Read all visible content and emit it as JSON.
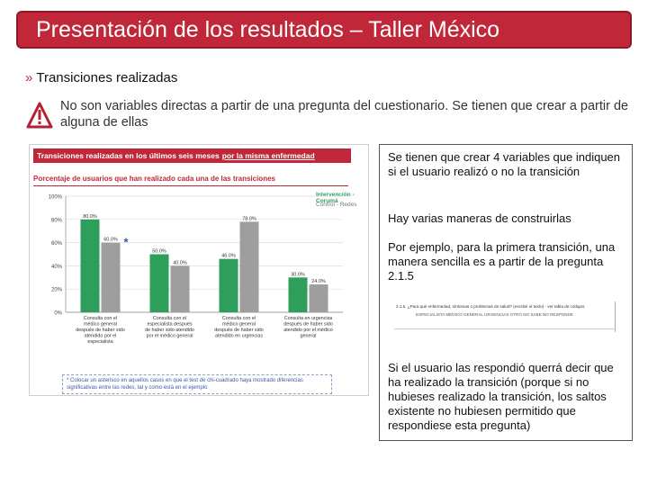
{
  "title": "Presentación de los resultados – Taller México",
  "section": {
    "bullet": "»",
    "label": "Transiciones realizadas"
  },
  "warning": {
    "icon": "warning-triangle-icon",
    "text": "No son variables directas a partir de una pregunta del cuestionario. Se tienen que crear a partir de alguna de ellas"
  },
  "chart_card": {
    "banner": "Transiciones realizadas en los últimos seis meses",
    "banner_underlined": "por la misma enfermedad",
    "subtitle": "Porcentaje de usuarios que han realizado cada una de las transiciones",
    "legend_intervencion": "Intervención - Corumá",
    "legend_control": "Control - Redes",
    "asterisk": "*",
    "footnote": "* Colocar un asterisco en aquellos casos en que el test de chi-cuadrado haya mostrado diferencias significativas entre las redes, tal y como está en el ejemplo"
  },
  "chart_data": {
    "type": "bar",
    "ylim": [
      0,
      100
    ],
    "yticks": [
      "100%",
      "80%",
      "60%",
      "40%",
      "20%",
      "0%"
    ],
    "categories": [
      [
        "Consulta con el",
        "médico general",
        "después de haber sido",
        "atendido por el",
        "especialista"
      ],
      [
        "Consulta con el",
        "especialista después",
        "de haber sido atendido",
        "por el médico general"
      ],
      [
        "Consulta con el",
        "médico general",
        "después de haber sido",
        "atendido en urgencias"
      ],
      [
        "Consulta en urgencias",
        "después de haber sido",
        "atendido por el médico",
        "general"
      ]
    ],
    "series": [
      {
        "name": "Intervención",
        "values": [
          80.0,
          50.0,
          46.0,
          30.0
        ],
        "labels": [
          "80.0%",
          "50.0%",
          "46.0%",
          "30.0%"
        ]
      },
      {
        "name": "Control",
        "values": [
          60.0,
          40.0,
          78.0,
          24.0
        ],
        "labels": [
          "60.0%",
          "40.0%",
          "78.0%",
          "24.0%"
        ]
      }
    ],
    "colors": {
      "intervencion": "#2e9e5b",
      "control": "#9e9e9e"
    },
    "significant_marker_category": 0
  },
  "right_panel": {
    "p1": "Se tienen que crear 4 variables que indiquen si el usuario realizó o no la transición",
    "p2": "Hay varias maneras de construirlas",
    "p3": "Por ejemplo, para la primera transición, una manera sencilla es a partir de la pregunta 2.1.5",
    "question_line1": "2.1.5. ¿Para qué enfermedad, síntomas o problemas de salud? (escribir el texto) - ver tabla de códigos",
    "question_line2": "ESPECIALISTA MÉDICO GENERAL URGENCIAS OTRO NO SABE NO RESPONDE",
    "p4": "Si el usuario las respondió querrá decir que ha realizado la transición (porque si no hubieses realizado la transición, los saltos existente no hubiesen permitido que respondiese esta pregunta)"
  }
}
